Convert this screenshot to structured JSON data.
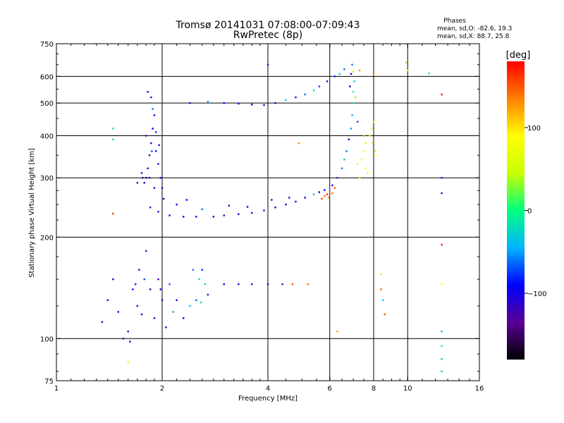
{
  "chart_data": {
    "type": "scatter",
    "title": "Tromsø 20141031 07:08:00-07:09:43",
    "subtitle": "RwPretec (8p)",
    "stats": {
      "title": "Phases",
      "o_line": "mean, sd,O: -82.6, 19.3",
      "x_line": "mean, sd,X:  88.7, 25.8"
    },
    "xlabel": "Frequency [MHz]",
    "ylabel": "Stationary phase Virtual Height [km]",
    "x_scale": "log",
    "y_scale": "log",
    "xlim": [
      1,
      16
    ],
    "ylim": [
      75,
      750
    ],
    "x_ticks": [
      1,
      2,
      4,
      6,
      8,
      10,
      16
    ],
    "x_tick_labels": [
      "1",
      "2",
      "4",
      "6",
      "8",
      "10",
      "16"
    ],
    "y_ticks": [
      75,
      100,
      200,
      300,
      400,
      500,
      600,
      750
    ],
    "y_tick_labels": [
      "75",
      "100",
      "200",
      "300",
      "400",
      "500",
      "600",
      "750"
    ],
    "grid_x": [
      2,
      4,
      6,
      8,
      10
    ],
    "grid_y": [
      100,
      200,
      300,
      400,
      500,
      600
    ],
    "colorbar": {
      "label": "[deg]",
      "range": [
        -180,
        180
      ],
      "ticks": [
        100,
        0,
        -100
      ],
      "tick_labels": [
        "100",
        "0",
        "−100"
      ],
      "stops": [
        "#000000",
        "#5a0096",
        "#0000ff",
        "#00b4ff",
        "#00ff80",
        "#c8ff00",
        "#ffff00",
        "#ff8000",
        "#ff0000"
      ]
    },
    "series": [
      {
        "points": [
          [
            1.78,
            290,
            -110
          ],
          [
            1.8,
            300,
            -100
          ],
          [
            1.82,
            320,
            -110
          ],
          [
            1.84,
            350,
            -115
          ],
          [
            1.86,
            380,
            -105
          ],
          [
            1.88,
            420,
            -90
          ],
          [
            1.9,
            460,
            -100
          ],
          [
            1.88,
            480,
            -60
          ],
          [
            1.86,
            520,
            -120
          ],
          [
            1.82,
            540,
            -110
          ],
          [
            1.8,
            400,
            -120
          ],
          [
            1.92,
            360,
            -100
          ],
          [
            1.95,
            330,
            -110
          ],
          [
            1.98,
            300,
            -100
          ],
          [
            2.0,
            280,
            -90
          ],
          [
            2.02,
            260,
            -100
          ],
          [
            1.7,
            290,
            -120
          ],
          [
            1.75,
            310,
            -110
          ],
          [
            1.76,
            300,
            -125
          ],
          [
            1.84,
            300,
            -115
          ],
          [
            1.9,
            280,
            -110
          ],
          [
            1.92,
            410,
            -80
          ],
          [
            1.87,
            360,
            -70
          ],
          [
            1.96,
            375,
            -110
          ]
        ]
      },
      {
        "points": [
          [
            1.85,
            245,
            -110
          ],
          [
            1.95,
            238,
            -105
          ],
          [
            2.1,
            232,
            -100
          ],
          [
            2.3,
            230,
            -100
          ],
          [
            2.5,
            230,
            -100
          ],
          [
            2.8,
            230,
            -100
          ],
          [
            3.0,
            232,
            -110
          ],
          [
            3.3,
            234,
            -100
          ],
          [
            3.6,
            236,
            -105
          ],
          [
            3.9,
            240,
            -110
          ],
          [
            4.2,
            245,
            -100
          ],
          [
            4.5,
            250,
            -110
          ],
          [
            4.8,
            255,
            -90
          ],
          [
            5.1,
            262,
            -100
          ],
          [
            5.4,
            268,
            -40
          ],
          [
            5.6,
            272,
            -100
          ],
          [
            5.8,
            276,
            -90
          ],
          [
            2.2,
            250,
            -100
          ],
          [
            2.6,
            242,
            -60
          ],
          [
            3.1,
            248,
            -100
          ],
          [
            3.5,
            246,
            -110
          ],
          [
            4.1,
            258,
            -100
          ],
          [
            4.6,
            262,
            -110
          ],
          [
            2.35,
            258,
            -90
          ]
        ]
      },
      {
        "points": [
          [
            5.7,
            260,
            160
          ],
          [
            5.8,
            265,
            150
          ],
          [
            5.9,
            268,
            170
          ],
          [
            6.0,
            272,
            140
          ],
          [
            6.2,
            280,
            150
          ],
          [
            5.95,
            262,
            130
          ],
          [
            6.1,
            270,
            140
          ]
        ]
      },
      {
        "points": [
          [
            6.1,
            285,
            -100
          ],
          [
            6.3,
            300,
            -80
          ],
          [
            6.5,
            320,
            -60
          ],
          [
            6.6,
            340,
            -30
          ],
          [
            6.7,
            360,
            -60
          ],
          [
            6.8,
            390,
            -100
          ],
          [
            6.9,
            420,
            -50
          ],
          [
            6.95,
            460,
            -40
          ],
          [
            7.0,
            500,
            -10
          ],
          [
            7.0,
            540,
            0
          ],
          [
            7.05,
            580,
            -30
          ],
          [
            7.0,
            620,
            40
          ],
          [
            6.95,
            650,
            -60
          ],
          [
            6.9,
            610,
            -110
          ],
          [
            6.85,
            560,
            -100
          ],
          [
            7.1,
            520,
            30
          ],
          [
            7.2,
            440,
            -70
          ]
        ]
      },
      {
        "points": [
          [
            7.2,
            330,
            60
          ],
          [
            7.4,
            340,
            70
          ],
          [
            7.5,
            360,
            90
          ],
          [
            7.6,
            380,
            80
          ],
          [
            7.8,
            400,
            100
          ],
          [
            7.9,
            420,
            80
          ],
          [
            8.0,
            440,
            60
          ],
          [
            7.3,
            300,
            70
          ],
          [
            7.6,
            320,
            90
          ],
          [
            7.7,
            310,
            60
          ],
          [
            8.1,
            360,
            50
          ],
          [
            7.5,
            400,
            120
          ],
          [
            7.95,
            380,
            110
          ],
          [
            8.05,
            350,
            80
          ]
        ]
      },
      {
        "points": [
          [
            2.4,
            500,
            -100
          ],
          [
            2.7,
            505,
            -50
          ],
          [
            3.0,
            500,
            -110
          ],
          [
            3.3,
            498,
            -100
          ],
          [
            3.6,
            495,
            -90
          ],
          [
            3.9,
            493,
            -110
          ],
          [
            4.2,
            500,
            -100
          ],
          [
            4.5,
            510,
            -40
          ],
          [
            4.8,
            520,
            -110
          ],
          [
            5.1,
            530,
            -60
          ],
          [
            5.4,
            545,
            -20
          ],
          [
            5.6,
            560,
            -70
          ],
          [
            5.9,
            580,
            -100
          ],
          [
            6.2,
            600,
            -80
          ],
          [
            6.4,
            610,
            -40
          ],
          [
            6.6,
            630,
            -60
          ]
        ]
      },
      {
        "points": [
          [
            1.35,
            112,
            -110
          ],
          [
            1.4,
            130,
            -110
          ],
          [
            1.45,
            150,
            -100
          ],
          [
            1.5,
            120,
            -100
          ],
          [
            1.55,
            100,
            -120
          ],
          [
            1.6,
            105,
            -110
          ],
          [
            1.62,
            98,
            -100
          ],
          [
            1.65,
            140,
            -90
          ],
          [
            1.7,
            125,
            -110
          ],
          [
            1.72,
            160,
            -110
          ],
          [
            1.75,
            118,
            -100
          ],
          [
            1.8,
            182,
            -120
          ],
          [
            1.85,
            140,
            -100
          ],
          [
            1.9,
            115,
            -110
          ],
          [
            1.95,
            150,
            -120
          ],
          [
            2.0,
            130,
            -110
          ],
          [
            2.05,
            108,
            -100
          ],
          [
            1.68,
            145,
            -80
          ],
          [
            1.78,
            150,
            -70
          ],
          [
            1.98,
            140,
            -100
          ]
        ]
      },
      {
        "points": [
          [
            2.1,
            145,
            -70
          ],
          [
            2.15,
            120,
            -50
          ],
          [
            2.2,
            130,
            -100
          ],
          [
            2.3,
            115,
            -90
          ],
          [
            2.4,
            125,
            -40
          ],
          [
            2.5,
            130,
            -60
          ],
          [
            2.55,
            150,
            -20
          ],
          [
            2.6,
            160,
            -80
          ],
          [
            2.65,
            145,
            -30
          ],
          [
            2.7,
            135,
            -110
          ],
          [
            2.45,
            160,
            -60
          ],
          [
            2.58,
            128,
            -20
          ]
        ]
      },
      {
        "points": [
          [
            3.0,
            145,
            -100
          ],
          [
            3.3,
            145,
            -100
          ],
          [
            3.6,
            145,
            -110
          ],
          [
            4.0,
            145,
            -100
          ],
          [
            4.4,
            145,
            -120
          ],
          [
            4.7,
            145,
            150
          ],
          [
            5.2,
            145,
            140
          ]
        ]
      },
      {
        "points": [
          [
            1.45,
            420,
            -10
          ],
          [
            1.45,
            390,
            -20
          ],
          [
            1.45,
            235,
            160
          ],
          [
            1.6,
            85,
            60
          ],
          [
            4.0,
            650,
            -120
          ],
          [
            4.9,
            380,
            130
          ],
          [
            6.3,
            105,
            120
          ],
          [
            7.3,
            625,
            130
          ],
          [
            8.0,
            610,
            130
          ],
          [
            8.4,
            155,
            50
          ],
          [
            8.4,
            140,
            150
          ],
          [
            8.5,
            130,
            -40
          ],
          [
            8.6,
            118,
            150
          ],
          [
            9.9,
            660,
            110
          ],
          [
            10.0,
            625,
            80
          ],
          [
            11.5,
            612,
            -20
          ],
          [
            12.5,
            530,
            170
          ],
          [
            12.5,
            300,
            -80
          ],
          [
            12.5,
            270,
            -110
          ],
          [
            12.5,
            190,
            170
          ],
          [
            12.5,
            145,
            80
          ],
          [
            12.5,
            105,
            -40
          ],
          [
            12.5,
            95,
            -10
          ],
          [
            12.5,
            87,
            -30
          ],
          [
            12.5,
            80,
            -20
          ]
        ]
      }
    ]
  }
}
